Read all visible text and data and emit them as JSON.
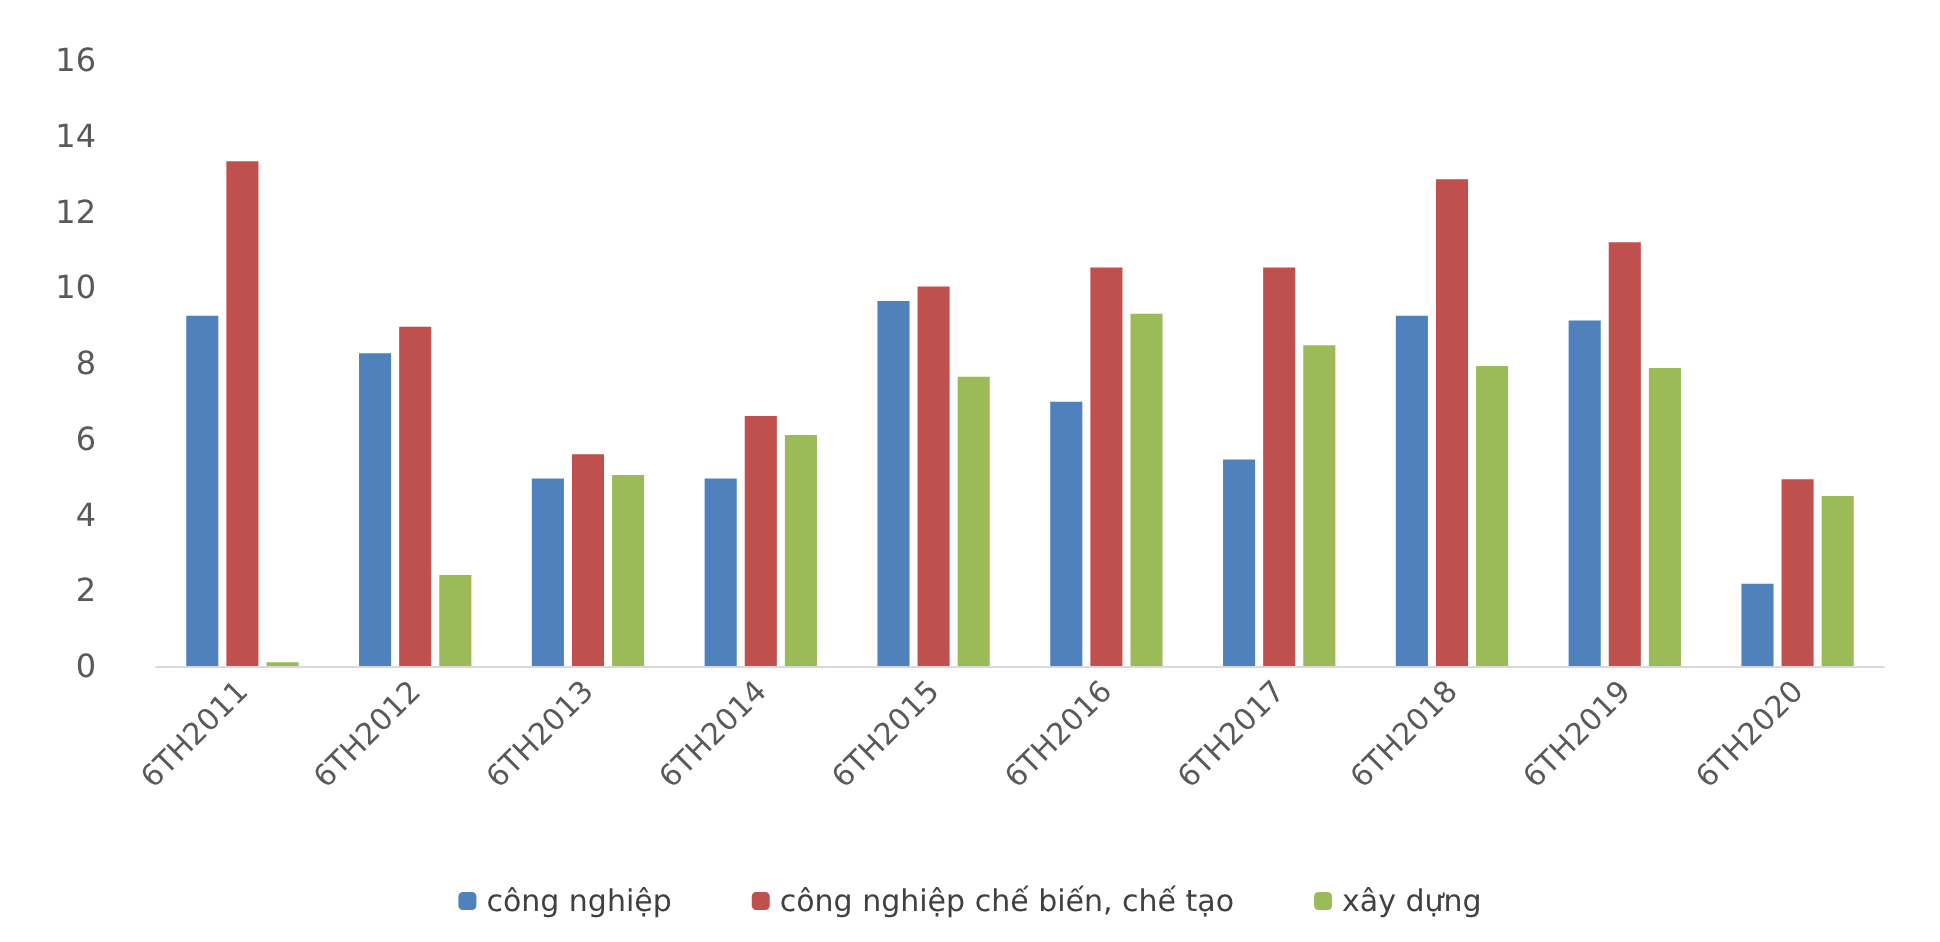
{
  "chart_data": {
    "type": "bar",
    "categories": [
      "6TH2011",
      "6TH2012",
      "6TH2013",
      "6TH2014",
      "6TH2015",
      "6TH2016",
      "6TH2017",
      "6TH2018",
      "6TH2019",
      "6TH2020"
    ],
    "series": [
      {
        "name": "công nghiệp",
        "color": "#4f81bd",
        "values": [
          9.25,
          8.26,
          4.95,
          4.95,
          9.64,
          6.98,
          5.45,
          9.25,
          9.12,
          2.17
        ]
      },
      {
        "name": "công nghiệp chế biến, chế tạo",
        "color": "#c0504d",
        "values": [
          13.33,
          8.96,
          5.59,
          6.6,
          10.02,
          10.52,
          10.52,
          12.85,
          11.19,
          4.93
        ]
      },
      {
        "name": "xây dựng",
        "color": "#9bbb59",
        "values": [
          0.1,
          2.4,
          5.04,
          6.1,
          7.64,
          9.3,
          8.47,
          7.92,
          7.87,
          4.49
        ]
      }
    ],
    "ylim": [
      0,
      16
    ],
    "yticks": [
      0,
      2,
      4,
      6,
      8,
      10,
      12,
      14,
      16
    ],
    "grid": false,
    "legend": "bottom"
  }
}
